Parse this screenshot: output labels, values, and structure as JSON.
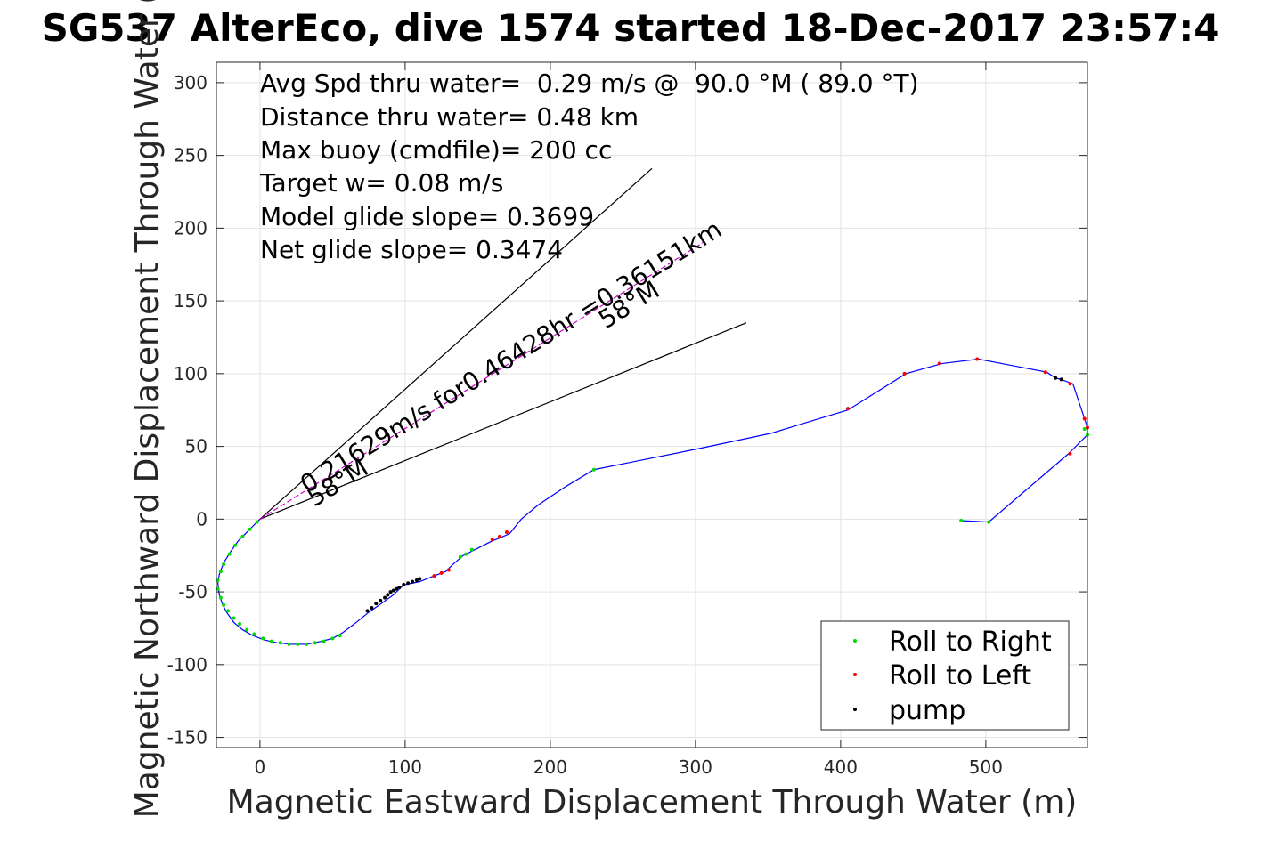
{
  "chart_data": {
    "type": "line",
    "title": "SG537 AlterEco, dive 1574 started 18-Dec-2017 23:57:4",
    "xlabel": "Magnetic Eastward Displacement Through Water (m)",
    "ylabel": "Magnetic Northward Displacement Through Water (",
    "xlim": [
      -30,
      570
    ],
    "ylim": [
      -157,
      314
    ],
    "xticks": [
      0,
      100,
      200,
      300,
      400,
      500
    ],
    "yticks": [
      -150,
      -100,
      -50,
      0,
      50,
      100,
      150,
      200,
      250,
      300
    ],
    "xtick_labels": [
      "0",
      "100",
      "200",
      "300",
      "400",
      "500"
    ],
    "ytick_labels": [
      "-150",
      "-100",
      "-50",
      "0",
      "50",
      "100",
      "150",
      "200",
      "250",
      "300"
    ],
    "grid": true,
    "info_lines": [
      "Avg Spd thru water=  0.29 m/s @  90.0 °M ( 89.0 °T)",
      "Distance thru water=  0.48 km",
      "Max buoy (cmdfile)= 200 cc",
      "Target w= 0.08 m/s",
      "Model glide slope= 0.3699",
      "Net glide slope= 0.3474"
    ],
    "track": {
      "color": "#0000ff",
      "x": [
        0,
        -5,
        -10,
        -15,
        -20,
        -25,
        -28,
        -29,
        -28,
        -26,
        -23,
        -18,
        -12,
        -5,
        3,
        12,
        22,
        32,
        42,
        50,
        57,
        65,
        75,
        85,
        92,
        97,
        100,
        105,
        110,
        120,
        128,
        133,
        140,
        148,
        160,
        165,
        172,
        180,
        192,
        210,
        230,
        260,
        300,
        352,
        375,
        405,
        445,
        470,
        495,
        542,
        548,
        552,
        560,
        568,
        570,
        570,
        568,
        560,
        557,
        502,
        483
      ],
      "y": [
        0,
        -5,
        -10,
        -15,
        -22,
        -30,
        -38,
        -44,
        -52,
        -58,
        -64,
        -71,
        -76,
        -80,
        -83,
        -85,
        -86,
        -86,
        -84,
        -82,
        -78,
        -72,
        -64,
        -57,
        -52,
        -47,
        -45,
        -44,
        -43,
        -39,
        -36,
        -31,
        -25,
        -21,
        -15,
        -13,
        -10,
        0,
        10,
        22,
        34,
        40,
        48,
        59,
        66,
        75,
        100,
        107,
        110,
        101,
        97,
        96,
        93,
        69,
        63,
        58,
        56,
        48,
        45,
        -2,
        -1
      ]
    },
    "heading_lines": {
      "color": "#000000",
      "origin": [
        0,
        0
      ],
      "bounding_heading_endpoints": [
        [
          270,
          241
        ],
        [
          335,
          135
        ]
      ],
      "mean_heading_endpoint": [
        305,
        190
      ],
      "mean_heading_color": "#cc00cc"
    },
    "annotations": {
      "speed_label": "0.21629m/s for0.46428hr =0.36151km",
      "heading_label_near": "58°M",
      "heading_label_far": "58°M"
    },
    "markers": {
      "roll_right": {
        "color": "#00dd00",
        "x": [
          -2,
          -7,
          -12,
          -17,
          -21,
          -25,
          -27,
          -29,
          -29,
          -27,
          -25,
          -22,
          -18,
          -14,
          -9,
          -4,
          2,
          8,
          14,
          20,
          26,
          32,
          38,
          44,
          50,
          55,
          138,
          142,
          146,
          230,
          483,
          502,
          568,
          570
        ],
        "y": [
          -2,
          -7,
          -12,
          -18,
          -24,
          -31,
          -36,
          -42,
          -48,
          -54,
          -59,
          -63,
          -68,
          -72,
          -76,
          -79,
          -82,
          -84,
          -85,
          -86,
          -86,
          -86,
          -85,
          -84,
          -82,
          -80,
          -26,
          -24,
          -21,
          34,
          -1,
          -2,
          62,
          58
        ]
      },
      "roll_left": {
        "color": "#ff0000",
        "x": [
          120,
          125,
          130,
          160,
          165,
          170,
          405,
          444,
          468,
          494,
          541,
          558,
          568,
          570,
          558
        ],
        "y": [
          -39,
          -37,
          -35,
          -14,
          -12,
          -9,
          76,
          100,
          107,
          110,
          101,
          93,
          69,
          63,
          45
        ]
      },
      "pump": {
        "color": "#000000",
        "x": [
          74,
          77,
          80,
          83,
          86,
          88,
          90,
          92,
          94,
          96,
          99,
          102,
          105,
          108,
          110,
          548,
          552
        ],
        "y": [
          -63,
          -61,
          -58,
          -56,
          -54,
          -52,
          -50,
          -49,
          -48,
          -47,
          -45,
          -44,
          -43,
          -42,
          -41,
          97,
          96
        ]
      }
    },
    "legend": {
      "placement": "bottom-right",
      "entries": [
        {
          "label": "Roll to Right",
          "color": "#00dd00"
        },
        {
          "label": "Roll to Left",
          "color": "#ff0000"
        },
        {
          "label": "pump",
          "color": "#000000"
        }
      ]
    }
  }
}
